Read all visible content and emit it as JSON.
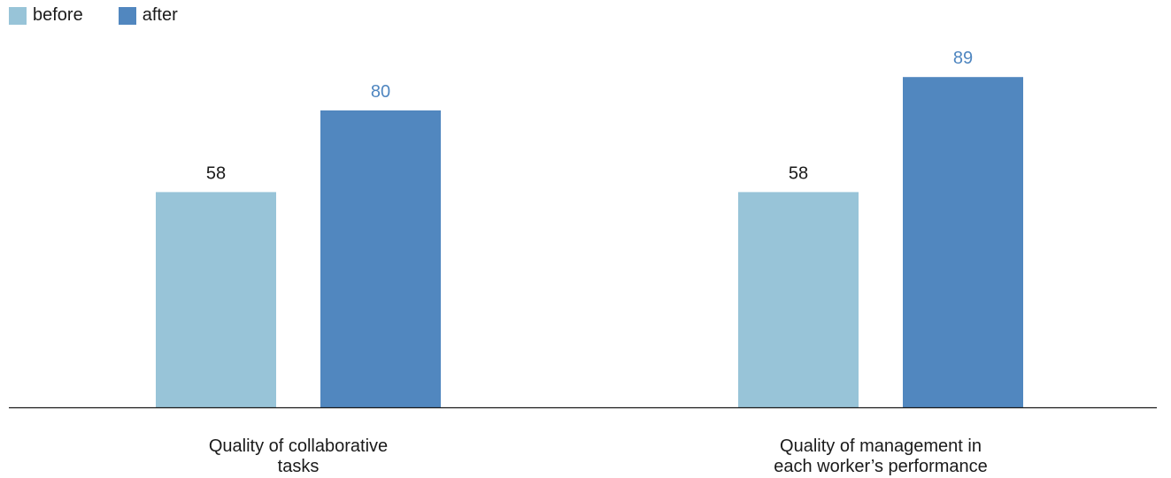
{
  "chart_data": {
    "type": "bar",
    "categories": [
      "Quality of collaborative tasks",
      "Quality of management in each worker’s performance"
    ],
    "category_label_lines": [
      [
        "Quality of collaborative",
        "tasks"
      ],
      [
        "Quality of management in",
        "each worker’s performance"
      ]
    ],
    "series": [
      {
        "name": "before",
        "values": [
          58,
          58
        ],
        "color": "#98c4d8",
        "label_color": "#1a1a1a"
      },
      {
        "name": "after",
        "values": [
          80,
          89
        ],
        "color": "#5187bf",
        "label_color": "#4f86c0"
      }
    ],
    "title": "",
    "xlabel": "",
    "ylabel": "",
    "ylim": [
      0,
      100
    ],
    "grid": false,
    "legend_position": "top-left",
    "data_labels": true
  }
}
